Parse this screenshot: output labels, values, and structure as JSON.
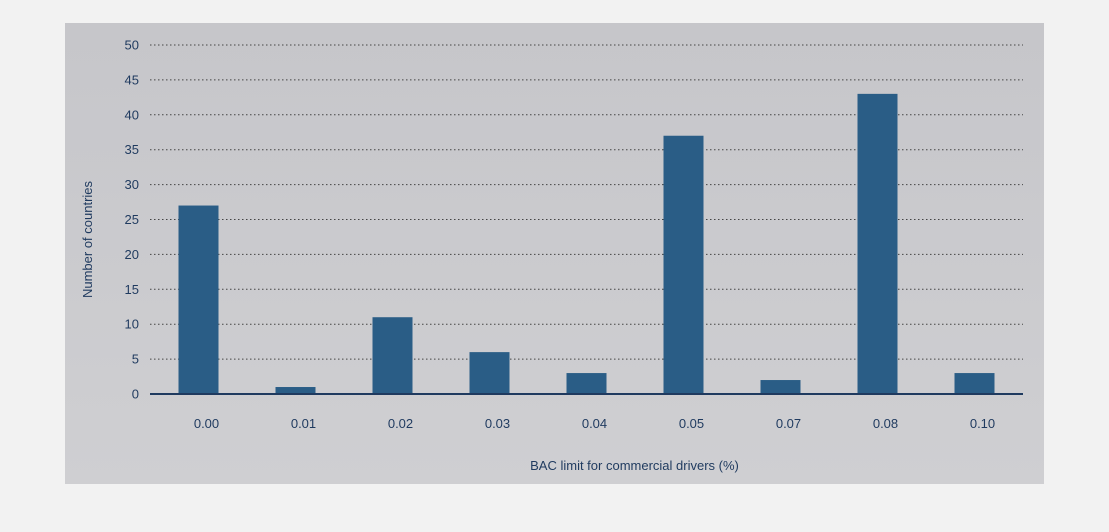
{
  "chart_data": {
    "type": "bar",
    "title": "",
    "xlabel": "BAC limit for commercial drivers (%)",
    "ylabel": "Number of countries",
    "categories": [
      "0.00",
      "0.01",
      "0.02",
      "0.03",
      "0.04",
      "0.05",
      "0.07",
      "0.08",
      "0.10"
    ],
    "values": [
      27,
      1,
      11,
      6,
      3,
      37,
      2,
      43,
      3
    ],
    "ylim": [
      0,
      50
    ],
    "yticks": [
      0,
      5,
      10,
      15,
      20,
      25,
      30,
      35,
      40,
      45,
      50
    ],
    "grid": true,
    "legend": "none",
    "colors": {
      "bar": "#2a5d86",
      "plot_bg": "#c9c9cc",
      "axis": "#1f3a5f",
      "page_bg": "#f2f2f2"
    }
  }
}
